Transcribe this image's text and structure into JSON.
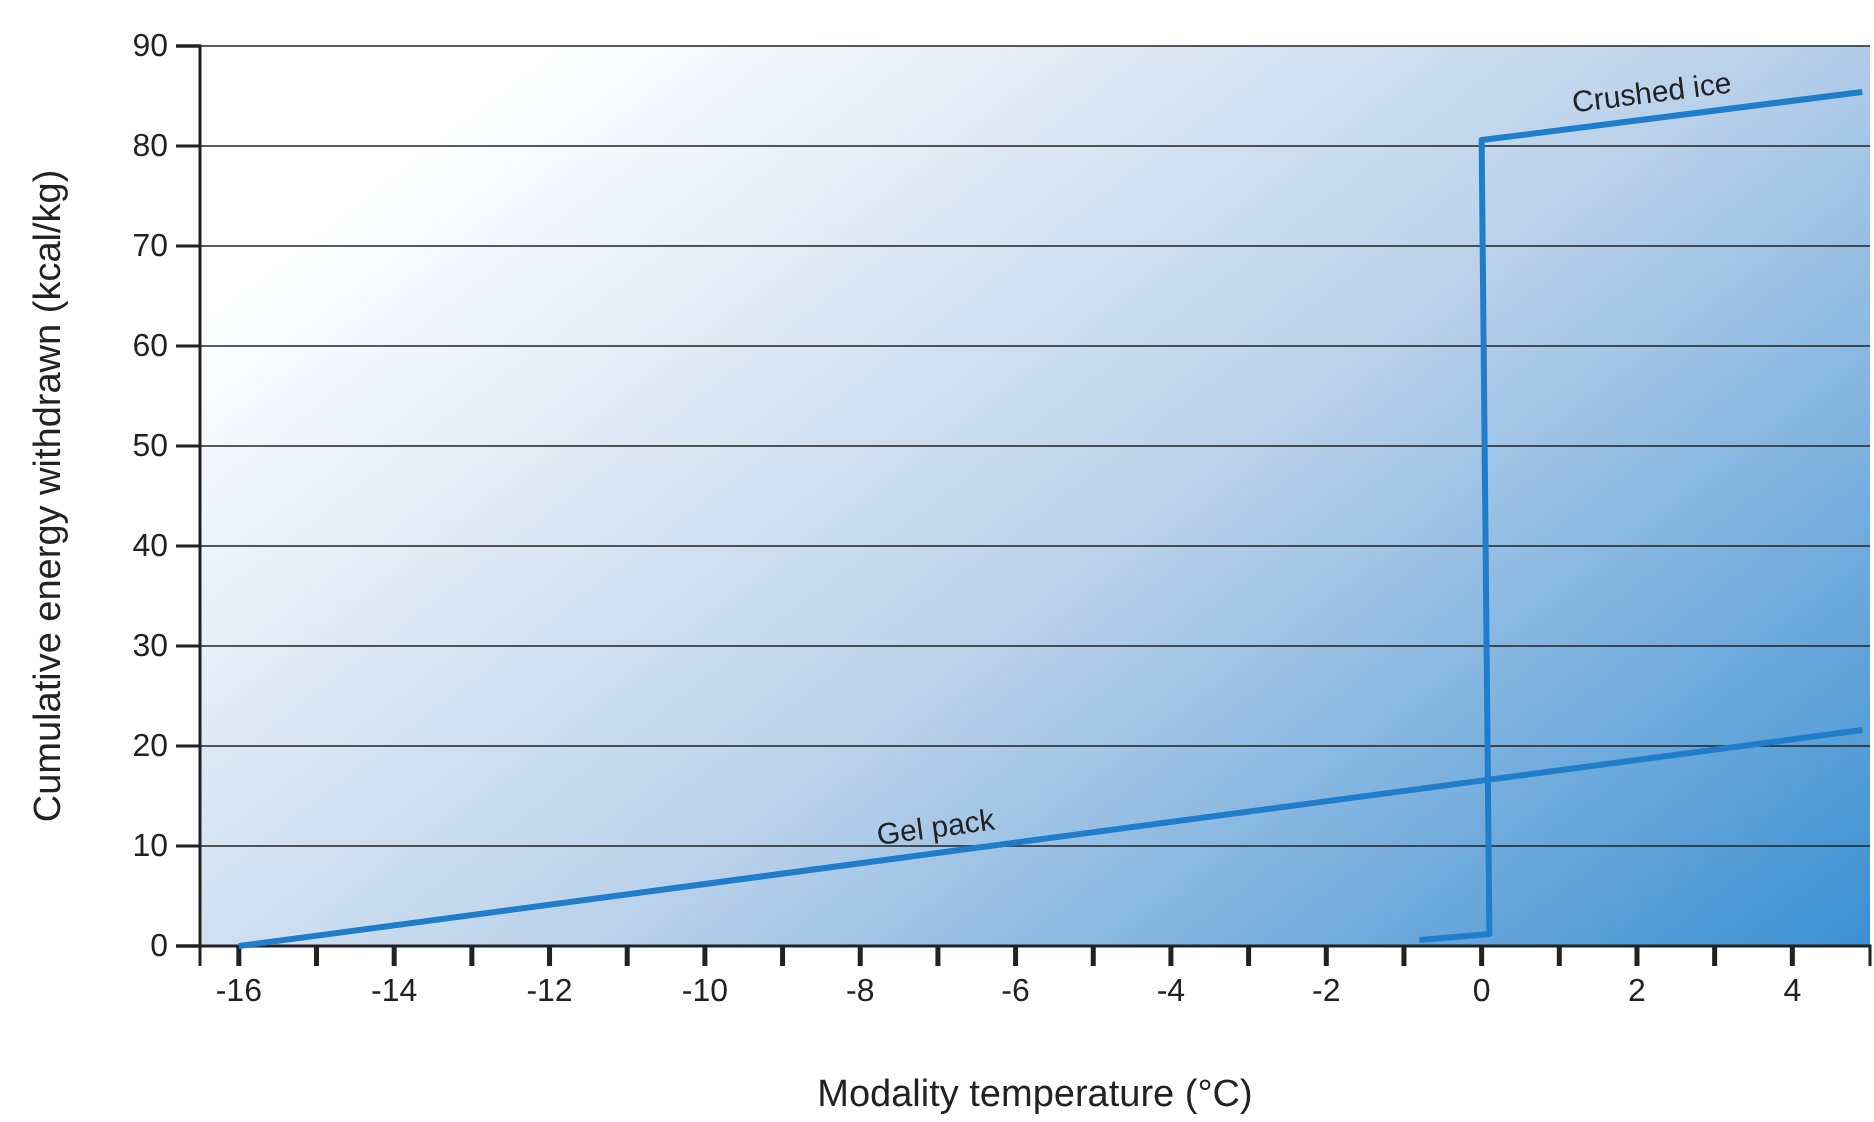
{
  "chart_data": {
    "type": "line",
    "xlabel": "Modality temperature (°C)",
    "ylabel": "Cumulative energy withdrawn (kcal/kg)",
    "xlim": [
      -16.5,
      5
    ],
    "ylim": [
      0,
      90
    ],
    "xticks": [
      -16,
      {
        "value": -15,
        "label": null
      },
      -14,
      {
        "value": -13,
        "label": null
      },
      -12,
      {
        "value": -11,
        "label": null
      },
      -10,
      {
        "value": -9,
        "label": null
      },
      -8,
      {
        "value": -7,
        "label": null
      },
      -6,
      {
        "value": -5,
        "label": null
      },
      -4,
      {
        "value": -3,
        "label": null
      },
      -2,
      {
        "value": -1,
        "label": null
      },
      0,
      {
        "value": 1,
        "label": null
      },
      2,
      {
        "value": 3,
        "label": null
      },
      4
    ],
    "yticks": [
      0,
      10,
      20,
      30,
      40,
      50,
      60,
      70,
      80,
      90
    ],
    "grid": "y",
    "line_style": "solid",
    "marker": "none",
    "series": [
      {
        "name": "Crushed ice",
        "color": "#1f7dc9",
        "x": [
          -0.8,
          0.1,
          0,
          4.9
        ],
        "values": [
          0.6,
          1.2,
          80.6,
          85.4
        ]
      },
      {
        "name": "Gel pack",
        "color": "#1f7dc9",
        "x": [
          -16,
          4.9
        ],
        "values": [
          0,
          21.6
        ]
      }
    ]
  }
}
